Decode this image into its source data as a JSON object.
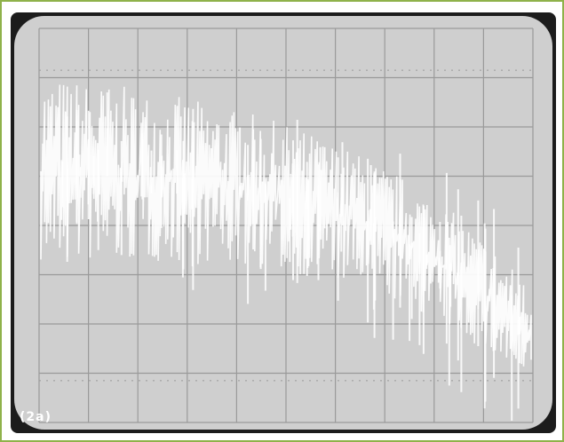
{
  "figure": {
    "label": "(2a)"
  },
  "colors": {
    "border": "#8fb24a",
    "screen": "#cfcfcf",
    "bezel": "#1c1c1c",
    "grid": "#9a9a9a",
    "trace": "#ffffff"
  },
  "oscilloscope": {
    "divisions_x": 10,
    "divisions_y": 8
  }
}
